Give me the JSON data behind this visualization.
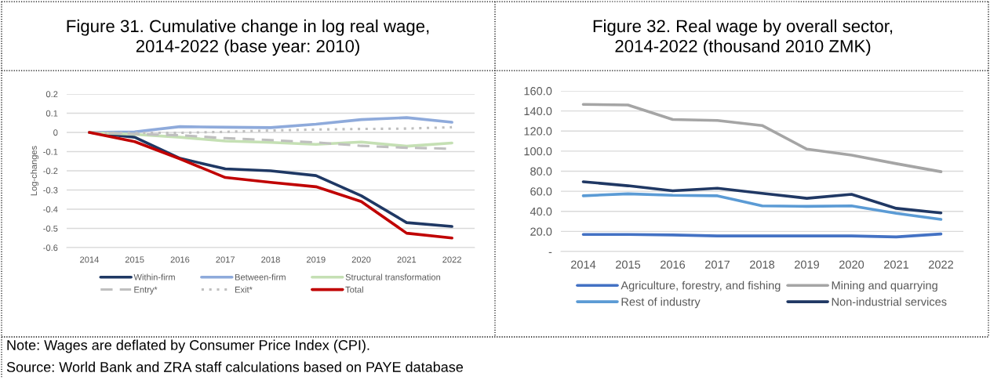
{
  "chart_data": [
    {
      "type": "line",
      "title": "Figure 31. Cumulative change in log real wage,\n2014-2022 (base year: 2010)",
      "ylabel": "Log-changes",
      "categories": [
        "2014",
        "2015",
        "2016",
        "2017",
        "2018",
        "2019",
        "2020",
        "2021",
        "2022"
      ],
      "series": [
        {
          "name": "Within-firm",
          "color": "#1f3864",
          "line_style": "solid",
          "values": [
            0,
            -0.025,
            -0.135,
            -0.19,
            -0.2,
            -0.225,
            -0.33,
            -0.47,
            -0.49
          ]
        },
        {
          "name": "Between-firm",
          "color": "#8eaadb",
          "line_style": "solid",
          "values": [
            0,
            0.003,
            0.03,
            0.027,
            0.025,
            0.043,
            0.067,
            0.077,
            0.053
          ]
        },
        {
          "name": "Structural transformation",
          "color": "#c5e0b4",
          "line_style": "solid",
          "values": [
            0,
            -0.01,
            -0.025,
            -0.045,
            -0.052,
            -0.062,
            -0.05,
            -0.072,
            -0.055
          ]
        },
        {
          "name": "Entry*",
          "color": "#bfbfbf",
          "line_style": "dashed",
          "values": [
            0,
            -0.008,
            -0.015,
            -0.03,
            -0.04,
            -0.052,
            -0.07,
            -0.08,
            -0.085
          ]
        },
        {
          "name": "Exit*",
          "color": "#bfbfbf",
          "line_style": "dotted",
          "values": [
            0,
            -0.003,
            -0.002,
            0.003,
            0.01,
            0.015,
            0.018,
            0.02,
            0.027
          ]
        },
        {
          "name": "Total",
          "color": "#c00000",
          "line_style": "solid",
          "values": [
            0,
            -0.048,
            -0.138,
            -0.235,
            -0.26,
            -0.283,
            -0.36,
            -0.525,
            -0.55
          ]
        }
      ],
      "ylim": [
        -0.6,
        0.2
      ],
      "yticks": [
        -0.6,
        -0.5,
        -0.4,
        -0.3,
        -0.2,
        -0.1,
        {
          "value": 0,
          "label": "0"
        },
        0.1,
        0.2
      ],
      "grid": "y",
      "legend": "bottom",
      "marker": "none",
      "annotations": [
        "Note: Wages are deflated by Consumer Price Index (CPI).",
        "Source: World Bank and ZRA staff calculations based on PAYE database"
      ]
    },
    {
      "type": "line",
      "title": "Figure 32. Real wage by overall sector,\n2014-2022 (thousand 2010 ZMK)",
      "categories": [
        "2014",
        "2015",
        "2016",
        "2017",
        "2018",
        "2019",
        "2020",
        "2021",
        "2022"
      ],
      "series": [
        {
          "name": "Agriculture, forestry, and fishing",
          "color": "#4472c4",
          "line_style": "solid",
          "values": [
            17,
            17,
            16.5,
            15.5,
            15.5,
            15.5,
            15.5,
            14.5,
            17.5
          ]
        },
        {
          "name": "Mining and quarrying",
          "color": "#a5a5a5",
          "line_style": "solid",
          "values": [
            146.5,
            146,
            131.5,
            130.5,
            125.5,
            102,
            96,
            87.5,
            79.5
          ]
        },
        {
          "name": "Rest of industry",
          "color": "#5b9bd5",
          "line_style": "solid",
          "values": [
            55.5,
            57.5,
            56,
            55.5,
            45.5,
            45,
            45.5,
            38,
            32
          ]
        },
        {
          "name": "Non-industrial services",
          "color": "#203864",
          "line_style": "solid",
          "values": [
            69.5,
            65.5,
            60.5,
            63,
            58,
            53,
            57,
            43,
            38.5
          ]
        }
      ],
      "ylim": [
        0,
        160
      ],
      "yticks": [
        {
          "value": 0,
          "label": "-"
        },
        {
          "value": 20,
          "label": "20.0"
        },
        {
          "value": 40,
          "label": "40.0"
        },
        {
          "value": 60,
          "label": "60.0"
        },
        {
          "value": 80,
          "label": "80.0"
        },
        {
          "value": 100,
          "label": "100.0"
        },
        {
          "value": 120,
          "label": "120.0"
        },
        {
          "value": 140,
          "label": "140.0"
        },
        {
          "value": 160,
          "label": "160.0"
        }
      ],
      "grid": "y",
      "legend": "bottom",
      "marker": "none"
    }
  ]
}
